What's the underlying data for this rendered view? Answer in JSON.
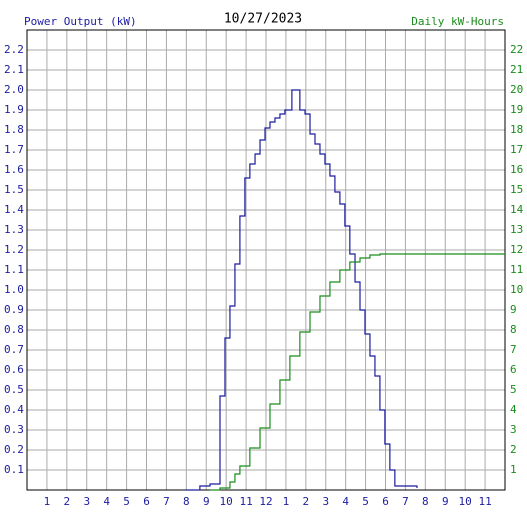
{
  "chart_data": {
    "type": "line",
    "title": "10/27/2023",
    "y_label": "Power Output (kW)",
    "y2_label": "Daily kW-Hours",
    "xlim": [
      0,
      24
    ],
    "xticks": [
      1,
      2,
      3,
      4,
      5,
      6,
      7,
      8,
      9,
      10,
      11,
      12,
      {
        "value": 13,
        "label": "1"
      },
      {
        "value": 14,
        "label": "2"
      },
      {
        "value": 15,
        "label": "3"
      },
      {
        "value": 16,
        "label": "4"
      },
      {
        "value": 17,
        "label": "5"
      },
      {
        "value": 18,
        "label": "6"
      },
      {
        "value": 19,
        "label": "7"
      },
      {
        "value": 20,
        "label": "8"
      },
      {
        "value": 21,
        "label": "9"
      },
      {
        "value": 22,
        "label": "10"
      },
      {
        "value": 23,
        "label": "11"
      }
    ],
    "ylim": [
      0,
      2.3
    ],
    "yticks": [
      0.1,
      0.2,
      0.3,
      0.4,
      0.5,
      0.6,
      0.7,
      0.8,
      0.9,
      {
        "value": 1,
        "label": "1.0"
      },
      1.1,
      1.2,
      1.3,
      1.4,
      1.5,
      1.6,
      1.7,
      1.8,
      1.9,
      {
        "value": 2,
        "label": "2.0"
      },
      2.1,
      2.2
    ],
    "y2lim": [
      0,
      23
    ],
    "y2ticks": [
      1,
      2,
      3,
      4,
      5,
      6,
      7,
      8,
      9,
      10,
      11,
      12,
      13,
      14,
      15,
      16,
      17,
      18,
      19,
      20,
      21,
      22
    ],
    "grid": true,
    "step": true,
    "series": [
      {
        "name": "Power Output (kW)",
        "color": "#1c1ca0",
        "axis": "y",
        "x": [
          7.93,
          8.68,
          9.19,
          9.69,
          9.94,
          10.19,
          10.44,
          10.69,
          10.94,
          11.19,
          11.45,
          11.7,
          11.95,
          12.2,
          12.45,
          12.7,
          12.95,
          13.3,
          13.7,
          13.96,
          14.21,
          14.46,
          14.71,
          14.96,
          15.21,
          15.46,
          15.71,
          15.96,
          16.21,
          16.47,
          16.72,
          16.97,
          17.22,
          17.47,
          17.72,
          17.97,
          18.22,
          18.47,
          19.58
        ],
        "values": [
          0,
          0.02,
          0.03,
          0.47,
          0.76,
          0.92,
          1.13,
          1.37,
          1.56,
          1.63,
          1.68,
          1.75,
          1.81,
          1.84,
          1.86,
          1.88,
          1.9,
          2,
          1.9,
          1.88,
          1.78,
          1.73,
          1.68,
          1.63,
          1.57,
          1.49,
          1.43,
          1.32,
          1.18,
          1.04,
          0.9,
          0.78,
          0.67,
          0.57,
          0.4,
          0.23,
          0.1,
          0.02,
          0.01
        ]
      },
      {
        "name": "Daily kW-Hours",
        "color": "#1a8c1a",
        "axis": "y2",
        "x": [
          9.19,
          9.69,
          10.19,
          10.44,
          10.69,
          11.19,
          11.7,
          12.2,
          12.7,
          13.2,
          13.7,
          14.21,
          14.71,
          15.21,
          15.71,
          16.21,
          16.72,
          17.22,
          17.72,
          24
        ],
        "values": [
          0,
          0.1,
          0.4,
          0.8,
          1.2,
          2.1,
          3.1,
          4.3,
          5.5,
          6.7,
          7.9,
          8.9,
          9.7,
          10.4,
          11,
          11.4,
          11.6,
          11.75,
          11.8,
          11.8
        ]
      }
    ]
  }
}
